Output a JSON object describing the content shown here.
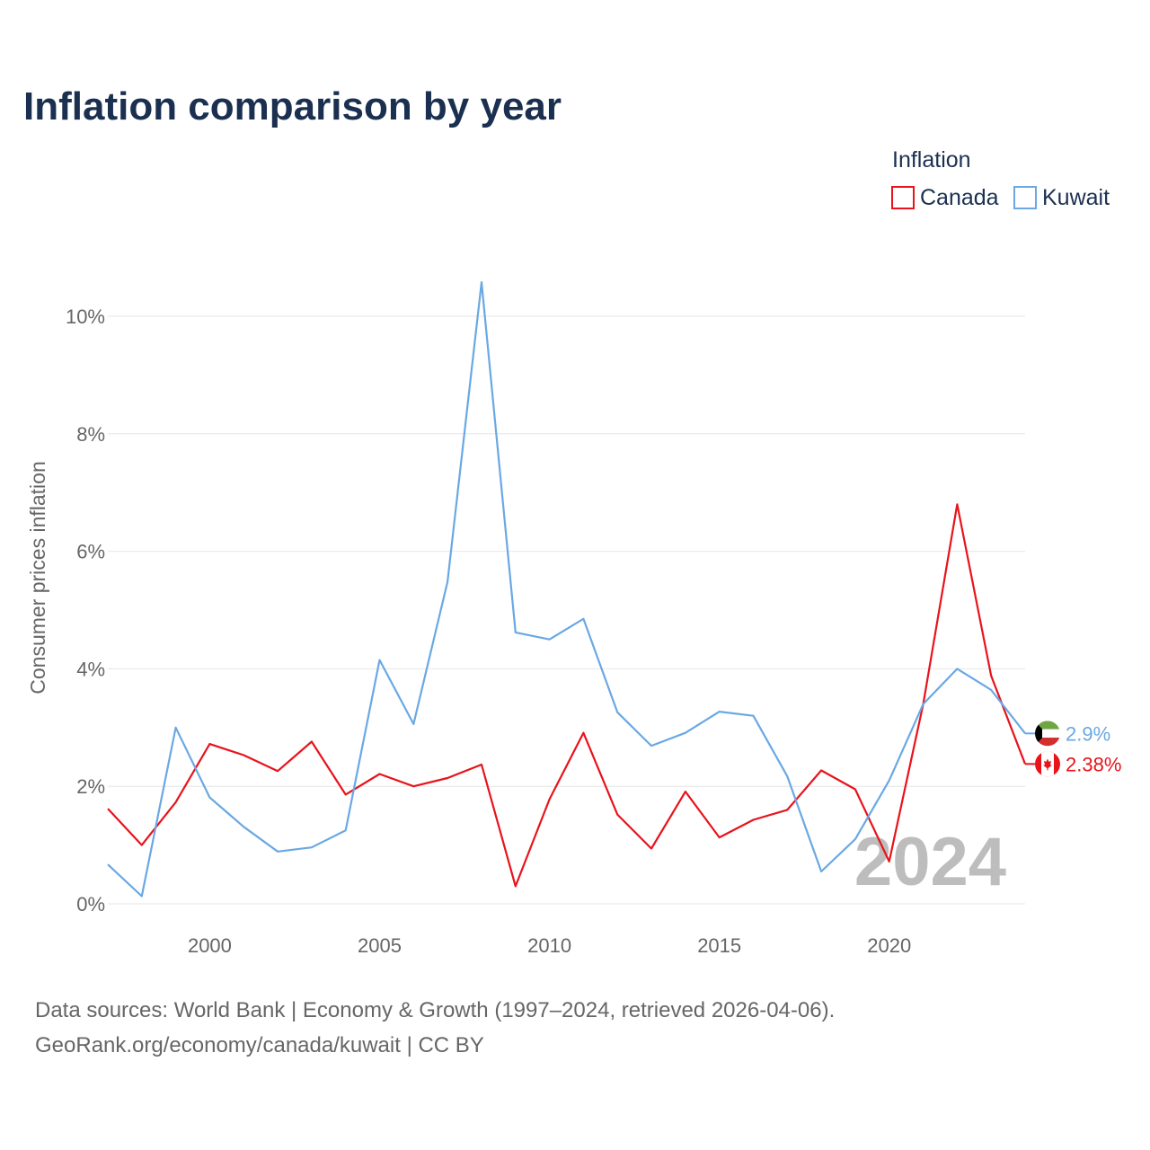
{
  "chart_data": {
    "type": "line",
    "title": "Inflation comparison by year",
    "ylabel": "Consumer prices inflation",
    "xlabel": "",
    "xlim": [
      1997,
      2024
    ],
    "ylim": [
      0,
      10
    ],
    "x_ticks": [
      2000,
      2005,
      2010,
      2015,
      2020
    ],
    "x_tick_labels": [
      "2000",
      "2005",
      "2010",
      "2015",
      "2020"
    ],
    "y_ticks": [
      0,
      2,
      4,
      6,
      8,
      10
    ],
    "y_tick_labels": [
      "0%",
      "2%",
      "4%",
      "6%",
      "8%",
      "10%"
    ],
    "legend_title": "Inflation",
    "legend_position": "top-right",
    "grid": true,
    "x": [
      1997,
      1998,
      1999,
      2000,
      2001,
      2002,
      2003,
      2004,
      2005,
      2006,
      2007,
      2008,
      2009,
      2010,
      2011,
      2012,
      2013,
      2014,
      2015,
      2016,
      2017,
      2018,
      2019,
      2020,
      2021,
      2022,
      2023,
      2024
    ],
    "series": [
      {
        "name": "Canada",
        "color": "#e8131b",
        "end_label": "2.38%",
        "values": [
          1.62,
          1.0,
          1.73,
          2.72,
          2.53,
          2.26,
          2.76,
          1.86,
          2.21,
          2.0,
          2.14,
          2.37,
          0.3,
          1.78,
          2.91,
          1.52,
          0.94,
          1.91,
          1.13,
          1.43,
          1.6,
          2.27,
          1.95,
          0.72,
          3.4,
          6.8,
          3.88,
          2.38
        ]
      },
      {
        "name": "Kuwait",
        "color": "#6aa8e3",
        "end_label": "2.9%",
        "values": [
          0.67,
          0.13,
          3.0,
          1.81,
          1.31,
          0.89,
          0.96,
          1.25,
          4.15,
          3.06,
          5.48,
          10.58,
          4.62,
          4.5,
          4.85,
          3.26,
          2.69,
          2.91,
          3.27,
          3.2,
          2.17,
          0.55,
          1.1,
          2.1,
          3.4,
          4.0,
          3.64,
          2.9
        ]
      }
    ],
    "annotation_year": "2024"
  },
  "footer": {
    "source_line": "Data sources: World Bank | Economy & Growth (1997–2024, retrieved 2026-04-06).",
    "attribution_line": "GeoRank.org/economy/canada/kuwait | CC BY"
  }
}
